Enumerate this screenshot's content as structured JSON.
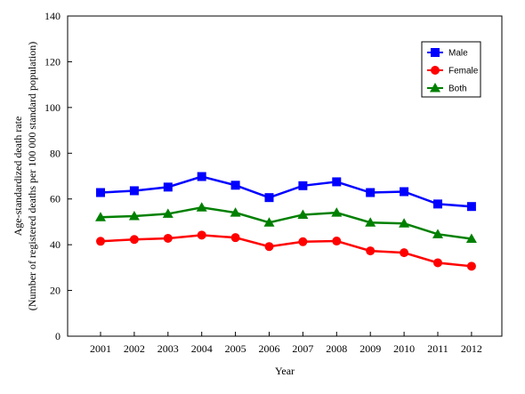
{
  "chart_data": {
    "type": "line",
    "x": [
      "2001",
      "2002",
      "2003",
      "2004",
      "2005",
      "2006",
      "2007",
      "2008",
      "2009",
      "2010",
      "2011",
      "2012"
    ],
    "series": [
      {
        "name": "Male",
        "color": "#0000FF",
        "marker": "square",
        "values": [
          62.8,
          63.6,
          65.2,
          69.8,
          66.0,
          60.6,
          65.8,
          67.5,
          62.8,
          63.2,
          57.8,
          56.7
        ]
      },
      {
        "name": "Female",
        "color": "#FF0000",
        "marker": "circle",
        "values": [
          41.5,
          42.3,
          42.8,
          44.2,
          43.1,
          39.2,
          41.3,
          41.6,
          37.3,
          36.5,
          32.1,
          30.6
        ]
      },
      {
        "name": "Both",
        "color": "#008000",
        "marker": "triangle",
        "values": [
          52.0,
          52.5,
          53.5,
          56.3,
          54.0,
          49.7,
          53.1,
          54.0,
          49.7,
          49.3,
          44.6,
          42.6
        ]
      }
    ],
    "title": "",
    "xlabel": "Year",
    "ylabel_line1": "Age-standardized death rate",
    "ylabel_line2": "(Number of registered deaths per 100 000 standard population)",
    "ylim": [
      0,
      140
    ],
    "yticks": [
      0,
      20,
      40,
      60,
      80,
      100,
      120,
      140
    ],
    "grid": false,
    "legend_position": "top-right"
  }
}
